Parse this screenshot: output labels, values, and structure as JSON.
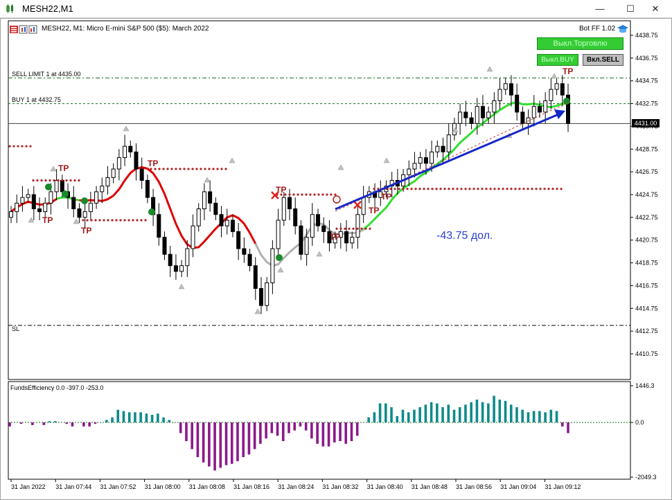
{
  "window": {
    "title": "MESH22,M1",
    "minimize": "—",
    "maximize": "☐",
    "close": "✕"
  },
  "header": {
    "symbol_line": "MESH22, M1:  Micro E-mini S&P 500 ($5): March 2022",
    "bot_label": "Bot FF 1.02"
  },
  "panel": {
    "trade_off": "Выкл.Торговлю",
    "buy_off": "Выкл.BUY",
    "sell_on": "Вкл.SELL"
  },
  "orders": {
    "sell_limit": "SELL LIMIT 1 at 4435.00",
    "buy": "BUY 1 at 4432.75",
    "sl": "SL"
  },
  "current_price": "4431.00",
  "annotation": "-43.75 дол.",
  "tp_label": "TP",
  "indicator": {
    "title": "FundsEfficiency 0.0 -397.0 -253.0"
  },
  "colors": {
    "bull_body": "#ffffff",
    "bear_body": "#000000",
    "ma_red": "#e00000",
    "ma_gray": "#b0b0b0",
    "ma_green": "#33dd33",
    "tp_dots": "#b22222",
    "hist_pos": "#108a8a",
    "hist_neg": "#8b1a8b",
    "arrow": "#1428c8"
  },
  "chart_data": [
    {
      "type": "candlestick",
      "title": "MESH22, M1",
      "y_ticks": [
        "4438.75",
        "4436.75",
        "4434.75",
        "4432.75",
        "4430.75",
        "4428.75",
        "4426.75",
        "4424.75",
        "4422.75",
        "4420.75",
        "4418.75",
        "4416.75",
        "4414.75",
        "4412.75",
        "4410.75"
      ],
      "ylim": [
        4409.5,
        4439.5
      ],
      "x_ticks": [
        "31 Jan 2022",
        "31 Jan 07:44",
        "31 Jan 07:52",
        "31 Jan 08:00",
        "31 Jan 08:08",
        "31 Jan 08:16",
        "31 Jan 08:24",
        "31 Jan 08:32",
        "31 Jan 08:40",
        "31 Jan 08:48",
        "31 Jan 08:56",
        "31 Jan 09:04",
        "31 Jan 09:12"
      ],
      "horizontal_lines": {
        "sell_limit": 4435.0,
        "buy": 4432.75,
        "current": 4431.0,
        "sl": 4413.25
      },
      "closes": [
        4423.25,
        4424.0,
        4424.5,
        4424.75,
        4423.5,
        4423.25,
        4424.0,
        4425.0,
        4426.0,
        4425.0,
        4424.5,
        4423.5,
        4422.75,
        4423.25,
        4424.0,
        4425.0,
        4425.5,
        4426.25,
        4427.0,
        4428.0,
        4429.0,
        4428.5,
        4427.0,
        4426.0,
        4424.5,
        4423.0,
        4421.0,
        4419.5,
        4418.5,
        4418.0,
        4418.5,
        4420.0,
        4422.0,
        4423.5,
        4425.0,
        4424.0,
        4423.0,
        4422.0,
        4422.5,
        4421.5,
        4420.0,
        4419.5,
        4418.5,
        4416.5,
        4415.0,
        4417.0,
        4420.0,
        4422.5,
        4424.5,
        4423.5,
        4422.0,
        4419.5,
        4421.0,
        4423.0,
        4422.0,
        4421.5,
        4420.5,
        4421.0,
        4421.5,
        4420.5,
        4421.0,
        4423.0,
        4424.5,
        4425.0,
        4424.5,
        4425.0,
        4425.5,
        4426.0,
        4425.5,
        4426.5,
        4427.0,
        4427.5,
        4428.0,
        4427.5,
        4428.5,
        4429.0,
        4428.5,
        4430.0,
        4431.0,
        4432.0,
        4431.5,
        4431.0,
        4432.5,
        4431.5,
        4432.0,
        4433.0,
        4434.0,
        4434.5,
        4433.5,
        4432.0,
        4431.0,
        4431.5,
        4432.5,
        4432.0,
        4433.0,
        4434.0,
        4434.5,
        4433.5,
        4431.0
      ],
      "ma_segments": [
        {
          "color": "red",
          "from_index": 0,
          "to_index": 8
        },
        {
          "color": "green",
          "from_index": 8,
          "to_index": 12
        },
        {
          "color": "red",
          "from_index": 12,
          "to_index": 43
        },
        {
          "color": "gray",
          "from_index": 43,
          "to_index": 62
        },
        {
          "color": "green",
          "from_index": 62,
          "to_index": 99
        }
      ]
    },
    {
      "type": "bar",
      "title": "FundsEfficiency 0.0 -397.0 -253.0",
      "y_ticks": [
        "1446.3",
        "0.0",
        "-2049.3"
      ],
      "ylim": [
        -2049.3,
        1446.3
      ],
      "values": [
        -150,
        0,
        -50,
        0,
        -100,
        0,
        -100,
        50,
        50,
        0,
        -50,
        -150,
        0,
        -150,
        -150,
        -50,
        0,
        100,
        200,
        500,
        450,
        400,
        400,
        400,
        350,
        300,
        350,
        200,
        100,
        0,
        -400,
        -700,
        -1000,
        -1300,
        -1500,
        -1650,
        -1800,
        -1700,
        -1600,
        -1550,
        -1450,
        -1300,
        -1200,
        -1000,
        -800,
        -600,
        -400,
        -500,
        -700,
        -400,
        -300,
        -150,
        -300,
        -600,
        -800,
        -900,
        -900,
        -750,
        -700,
        -800,
        -700,
        -500,
        0,
        200,
        400,
        750,
        750,
        600,
        250,
        500,
        400,
        500,
        600,
        700,
        800,
        750,
        600,
        700,
        500,
        600,
        700,
        800,
        900,
        800,
        750,
        1050,
        900,
        850,
        700,
        600,
        500,
        400,
        450,
        450,
        400,
        500,
        450,
        -150,
        -400
      ],
      "labels": "none"
    }
  ]
}
